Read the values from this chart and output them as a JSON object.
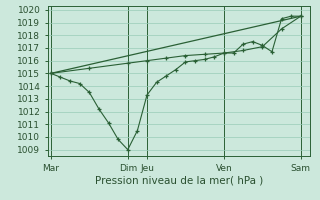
{
  "xlabel": "Pression niveau de la mer( hPa )",
  "bg_color": "#cce8dc",
  "plot_bg_color": "#cce8dc",
  "grid_color": "#99ccb8",
  "line_color": "#2a6035",
  "vline_color": "#2a6035",
  "ylim": [
    1009,
    1020
  ],
  "yticks": [
    1009,
    1010,
    1011,
    1012,
    1013,
    1014,
    1015,
    1016,
    1017,
    1018,
    1019,
    1020
  ],
  "xtick_labels": [
    "Mar",
    "Dim",
    "Jeu",
    "Ven",
    "Sam"
  ],
  "xtick_positions": [
    0,
    8,
    10,
    18,
    26
  ],
  "xlim": [
    -0.3,
    27.0
  ],
  "series1_x": [
    0,
    1,
    2,
    3,
    4,
    5,
    6,
    7,
    8,
    9,
    10,
    11,
    12,
    13,
    14,
    15,
    16,
    17,
    18,
    19,
    20,
    21,
    22,
    23,
    24,
    25,
    26
  ],
  "series1_y": [
    1015.0,
    1014.7,
    1014.4,
    1014.2,
    1013.5,
    1012.2,
    1011.1,
    1009.8,
    1009.0,
    1010.5,
    1013.3,
    1014.3,
    1014.8,
    1015.3,
    1015.9,
    1016.0,
    1016.1,
    1016.3,
    1016.6,
    1016.6,
    1017.3,
    1017.5,
    1017.2,
    1016.7,
    1019.3,
    1019.5,
    1019.5
  ],
  "series2_x": [
    0,
    4,
    8,
    10,
    12,
    14,
    16,
    18,
    20,
    22,
    24,
    26
  ],
  "series2_y": [
    1015.0,
    1015.4,
    1015.8,
    1016.0,
    1016.2,
    1016.4,
    1016.5,
    1016.6,
    1016.8,
    1017.1,
    1018.5,
    1019.5
  ],
  "series3_x": [
    0,
    26
  ],
  "series3_y": [
    1015.0,
    1019.5
  ]
}
